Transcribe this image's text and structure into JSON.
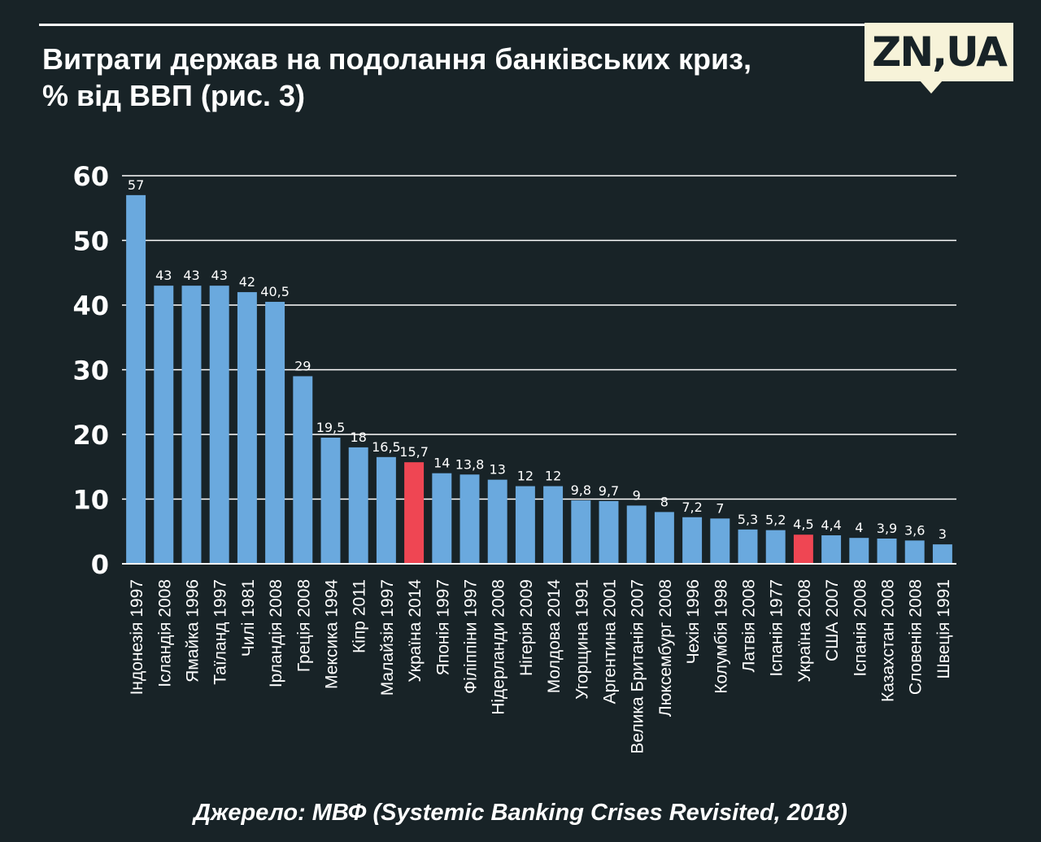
{
  "header": {
    "title_line1": "Витрати держав на подолання банківських криз,",
    "title_line2": "% від ВВП (рис. 3)",
    "logo_text": "ZN,UA"
  },
  "footer": {
    "source": "Джерело: МВФ (Systemic Banking Crises Revisited, 2018)"
  },
  "colors": {
    "background": "#182327",
    "bar_default": "#6aa9de",
    "bar_highlight": "#ef4653",
    "text": "#ffffff",
    "logo_bg": "#f7f3d9"
  },
  "chart_data": {
    "type": "bar",
    "title": "Витрати держав на подолання банківських криз, % від ВВП (рис. 3)",
    "xlabel": "",
    "ylabel": "",
    "ylim": [
      0,
      60
    ],
    "yticks": [
      0,
      10,
      20,
      30,
      40,
      50,
      60
    ],
    "grid": true,
    "categories": [
      "Індонезія 1997",
      "Ісландія 2008",
      "Ямайка 1996",
      "Таїланд 1997",
      "Чилі 1981",
      "Ірландія 2008",
      "Греція 2008",
      "Мексика 1994",
      "Кіпр 2011",
      "Малайзія 1997",
      "Україна 2014",
      "Японія 1997",
      "Філіппіни 1997",
      "Нідерланди 2008",
      "Нігерія 2009",
      "Молдова 2014",
      "Угорщина 1991",
      "Аргентина 2001",
      "Велика Британія 2007",
      "Люксембург 2008",
      "Чехія 1996",
      "Колумбія 1998",
      "Латвія 2008",
      "Іспанія 1977",
      "Україна 2008",
      "США 2007",
      "Іспанія 2008",
      "Казахстан 2008",
      "Словенія 2008",
      "Швеція 1991"
    ],
    "values": [
      57,
      43,
      43,
      43,
      42,
      40.5,
      29,
      19.5,
      18,
      16.5,
      15.7,
      14,
      13.8,
      13,
      12,
      12,
      9.8,
      9.7,
      9,
      8,
      7.2,
      7,
      5.3,
      5.2,
      4.5,
      4.4,
      4,
      3.9,
      3.6,
      3
    ],
    "value_labels": [
      "57",
      "43",
      "43",
      "43",
      "42",
      "40,5",
      "29",
      "19,5",
      "18",
      "16,5",
      "15,7",
      "14",
      "13,8",
      "13",
      "12",
      "12",
      "9,8",
      "9,7",
      "9",
      "8",
      "7,2",
      "7",
      "5,3",
      "5,2",
      "4,5",
      "4,4",
      "4",
      "3,9",
      "3,6",
      "3"
    ],
    "highlight": [
      "Україна 2014",
      "Україна 2008"
    ]
  }
}
